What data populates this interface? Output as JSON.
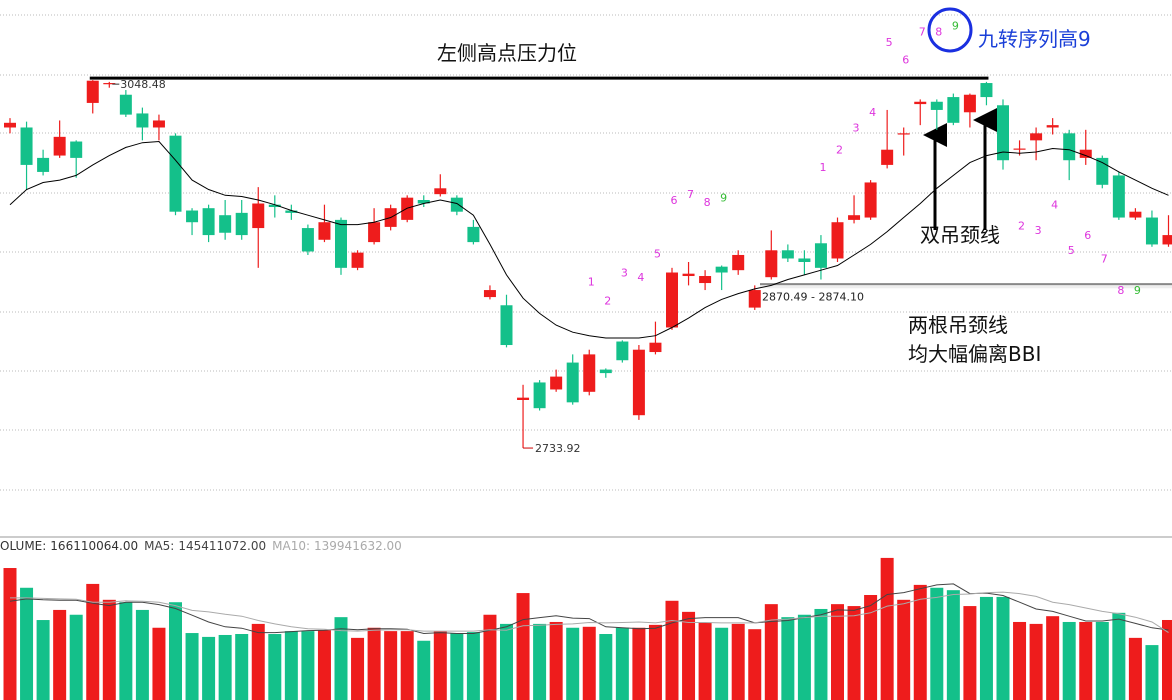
{
  "chart_data": [
    {
      "type": "candlestick",
      "ylim": [
        2660,
        3117
      ],
      "up_color": "#ee1c1c",
      "down_color": "#14c08a",
      "candles": {
        "open": [
          3008,
          3008,
          2982,
          2984,
          2996,
          3029,
          3045,
          3036,
          3020,
          3008,
          3001,
          2937,
          2939,
          2933,
          2935,
          2922,
          2942,
          2937,
          2922,
          2912,
          2929,
          2888,
          2910,
          2923,
          2929,
          2946,
          2951,
          2948,
          2923,
          2863,
          2856,
          2775,
          2790,
          2784,
          2807,
          2782,
          2801,
          2825,
          2762,
          2816,
          2837,
          2881,
          2875,
          2889,
          2886,
          2854,
          2880,
          2903,
          2896,
          2909,
          2896,
          2929,
          2931,
          2976,
          3002,
          3028,
          3030,
          3034,
          3021,
          3046,
          3027,
          2989,
          2997,
          3008,
          3003,
          2982,
          2982,
          2967,
          2931,
          2931,
          2908
        ],
        "high": [
          3016,
          3013,
          2989,
          3014,
          2997,
          3048.48,
          3047,
          3040,
          3025,
          3019,
          3003,
          2939,
          2942,
          2946,
          2946,
          2957,
          2950,
          2942,
          2925,
          2942,
          2931,
          2903,
          2939,
          2942,
          2950,
          2950,
          2968,
          2950,
          2929,
          2873,
          2865,
          2788,
          2792,
          2801,
          2814,
          2818,
          2802,
          2826,
          2822,
          2842,
          2888,
          2893,
          2886,
          2890,
          2903,
          2873,
          2920,
          2908,
          2903,
          2916,
          2931,
          2950,
          2963,
          3023,
          3008,
          3032,
          3032,
          3037,
          3037,
          3047,
          3032,
          2997,
          3008,
          3016,
          3006,
          3006,
          2984,
          2970,
          2939,
          2937,
          2933
        ],
        "low": [
          3003,
          2955,
          2967,
          2982,
          2965,
          3020,
          3042,
          3017,
          2997,
          2997,
          2933,
          2916,
          2910,
          2912,
          2912,
          2888,
          2931,
          2929,
          2899,
          2910,
          2882,
          2886,
          2908,
          2920,
          2927,
          2940,
          2949,
          2933,
          2908,
          2861,
          2820,
          2733.92,
          2766,
          2782,
          2771,
          2779,
          2794,
          2807,
          2758,
          2814,
          2835,
          2873,
          2869,
          2869,
          2882,
          2852,
          2878,
          2893,
          2882,
          2878,
          2893,
          2926,
          2929,
          2973,
          2984,
          3010,
          3006,
          3010,
          3008,
          3027,
          2972,
          2984,
          2980,
          3002,
          2963,
          2976,
          2956,
          2929,
          2929,
          2906,
          2906
        ],
        "close": [
          3012,
          2976,
          2970,
          3000,
          2982,
          3048,
          3046,
          3019,
          3008,
          3014,
          2936,
          2927,
          2916,
          2918,
          2916,
          2943,
          2940,
          2935,
          2902,
          2927,
          2888,
          2901,
          2927,
          2939,
          2948,
          2943,
          2956,
          2936,
          2910,
          2869,
          2822,
          2777,
          2768,
          2795,
          2773,
          2814,
          2798,
          2809,
          2818,
          2824,
          2884,
          2883,
          2881,
          2884,
          2899,
          2869,
          2903,
          2896,
          2893,
          2888,
          2927,
          2933,
          2961,
          2989,
          3003,
          3030,
          3023,
          3012,
          3036,
          3034,
          2980,
          2990,
          3003,
          3010,
          2980,
          2989,
          2959,
          2931,
          2936,
          2908,
          2916
        ]
      },
      "lines": [
        {
          "color": "#000000",
          "values": [
            2942,
            2955,
            2961,
            2963,
            2967,
            2976,
            2984,
            2991,
            2995,
            2996,
            2980,
            2963,
            2955,
            2950,
            2949,
            2946,
            2942,
            2937,
            2933,
            2929,
            2925,
            2925,
            2927,
            2931,
            2939,
            2943,
            2946,
            2943,
            2933,
            2908,
            2882,
            2862,
            2849,
            2839,
            2833,
            2830,
            2828,
            2828,
            2828,
            2830,
            2837,
            2845,
            2854,
            2861,
            2866,
            2870,
            2873,
            2878,
            2882,
            2886,
            2890,
            2899,
            2908,
            2919,
            2931,
            2943,
            2956,
            2967,
            2978,
            2984,
            2987,
            2986,
            2987,
            2990,
            2989,
            2984,
            2978,
            2970,
            2963,
            2956,
            2950
          ]
        }
      ],
      "td_above": [
        null,
        null,
        null,
        null,
        null,
        null,
        null,
        null,
        null,
        null,
        null,
        null,
        null,
        null,
        null,
        null,
        null,
        null,
        null,
        null,
        null,
        null,
        null,
        null,
        null,
        null,
        null,
        null,
        null,
        null,
        null,
        null,
        null,
        null,
        null,
        {
          "label": "1",
          "color": "#dd33dd"
        },
        {
          "label": "2",
          "color": "#dd33dd"
        },
        {
          "label": "3",
          "color": "#dd33dd"
        },
        {
          "label": "4",
          "color": "#dd33dd"
        },
        {
          "label": "5",
          "color": "#dd33dd"
        },
        {
          "label": "6",
          "color": "#dd33dd"
        },
        {
          "label": "7",
          "color": "#dd33dd"
        },
        {
          "label": "8",
          "color": "#dd33dd"
        },
        {
          "label": "9",
          "color": "#33bb33"
        },
        null,
        null,
        null,
        null,
        null,
        {
          "label": "1",
          "color": "#dd33dd"
        },
        {
          "label": "2",
          "color": "#dd33dd"
        },
        {
          "label": "3",
          "color": "#dd33dd"
        },
        {
          "label": "4",
          "color": "#dd33dd"
        },
        {
          "label": "5",
          "color": "#dd33dd"
        },
        {
          "label": "6",
          "color": "#dd33dd"
        },
        {
          "label": "7",
          "color": "#dd33dd"
        },
        {
          "label": "8",
          "color": "#dd33dd"
        },
        {
          "label": "9",
          "color": "#33bb33"
        },
        null,
        null,
        null,
        null,
        null,
        null,
        null,
        null,
        null,
        null,
        null,
        null,
        null
      ],
      "td_below": [
        null,
        null,
        null,
        null,
        null,
        null,
        null,
        null,
        null,
        null,
        null,
        null,
        null,
        null,
        null,
        null,
        null,
        null,
        null,
        null,
        null,
        null,
        null,
        null,
        null,
        null,
        null,
        null,
        null,
        null,
        null,
        null,
        null,
        null,
        null,
        null,
        null,
        null,
        null,
        null,
        null,
        null,
        null,
        null,
        null,
        null,
        null,
        null,
        null,
        null,
        null,
        null,
        null,
        null,
        null,
        null,
        null,
        null,
        null,
        null,
        null,
        {
          "label": "2",
          "color": "#dd33dd"
        },
        {
          "label": "3",
          "color": "#dd33dd"
        },
        {
          "label": "4",
          "color": "#dd33dd"
        },
        {
          "label": "5",
          "color": "#dd33dd"
        },
        {
          "label": "6",
          "color": "#dd33dd"
        },
        {
          "label": "7",
          "color": "#dd33dd"
        },
        {
          "label": "8",
          "color": "#dd33dd"
        },
        {
          "label": "9",
          "color": "#33bb33"
        },
        null,
        null
      ],
      "gap": {
        "values": [
          2870.49,
          2874.1
        ],
        "label": "2870.49 - 2874.10"
      },
      "annotations": [
        "左侧高点压力位",
        "九转序列高9",
        "双吊颈线",
        "两根吊颈线",
        "均大幅偏离BBI"
      ]
    },
    {
      "type": "volume",
      "ylim": [
        0,
        300000000
      ],
      "series": [
        {
          "name": "VOLUME:",
          "color": "#333333",
          "last_label": "166110064.00",
          "values": [
            274000000,
            233000000,
            166000000,
            187000000,
            177000000,
            241000000,
            208000000,
            203000000,
            187000000,
            150000000,
            203000000,
            139000000,
            131000000,
            135000000,
            137000000,
            158000000,
            137000000,
            143000000,
            143000000,
            145000000,
            172000000,
            129000000,
            150000000,
            143000000,
            143000000,
            123000000,
            143000000,
            139000000,
            141000000,
            177000000,
            158000000,
            222000000,
            158000000,
            162000000,
            150000000,
            152000000,
            137000000,
            150000000,
            150000000,
            156000000,
            206000000,
            183000000,
            160000000,
            150000000,
            158000000,
            147000000,
            199000000,
            172000000,
            177000000,
            189000000,
            199000000,
            195000000,
            218000000,
            295000000,
            208000000,
            239000000,
            233000000,
            228000000,
            195000000,
            214000000,
            214000000,
            162000000,
            158000000,
            174000000,
            162000000,
            162000000,
            162000000,
            181000000,
            129000000,
            114000000,
            166110064
          ]
        },
        {
          "name": "MA5:",
          "color": "#444444",
          "last_label": "145411072.00",
          "values": [
            205000000,
            210000000,
            208000000,
            207000000,
            207000000,
            201000000,
            196000000,
            203000000,
            203000000,
            198000000,
            190000000,
            176000000,
            162000000,
            152000000,
            149000000,
            140000000,
            140000000,
            142000000,
            144000000,
            145000000,
            148000000,
            146000000,
            148000000,
            148000000,
            147000000,
            138000000,
            140000000,
            138000000,
            138000000,
            145000000,
            152000000,
            167000000,
            171000000,
            175000000,
            170000000,
            169000000,
            152000000,
            150000000,
            148000000,
            149000000,
            160000000,
            169000000,
            171000000,
            171000000,
            171000000,
            160000000,
            163000000,
            165000000,
            171000000,
            177000000,
            187000000,
            186000000,
            196000000,
            219000000,
            223000000,
            231000000,
            239000000,
            241000000,
            221000000,
            222000000,
            217000000,
            203000000,
            189000000,
            184000000,
            174000000,
            164000000,
            164000000,
            168000000,
            159000000,
            150000000,
            145411072
          ]
        },
        {
          "name": "MA10:",
          "color": "#aaaaaa",
          "last_label": "139941632.00",
          "values": [
            212000000,
            212000000,
            211000000,
            210000000,
            209000000,
            203000000,
            203000000,
            206000000,
            205000000,
            203000000,
            196000000,
            186000000,
            183000000,
            178000000,
            174000000,
            165000000,
            158000000,
            152000000,
            148000000,
            147000000,
            144000000,
            143000000,
            145000000,
            146000000,
            146000000,
            143000000,
            143000000,
            143000000,
            143000000,
            146000000,
            145000000,
            154000000,
            155000000,
            157000000,
            158000000,
            161000000,
            160000000,
            161000000,
            162000000,
            160000000,
            165000000,
            161000000,
            161000000,
            160000000,
            160000000,
            160000000,
            166000000,
            168000000,
            171000000,
            174000000,
            174000000,
            175000000,
            181000000,
            195000000,
            200000000,
            209000000,
            213000000,
            219000000,
            220000000,
            223000000,
            224000000,
            221000000,
            215000000,
            203000000,
            198000000,
            191000000,
            184000000,
            179000000,
            172000000,
            162000000,
            139941632
          ]
        }
      ]
    }
  ]
}
